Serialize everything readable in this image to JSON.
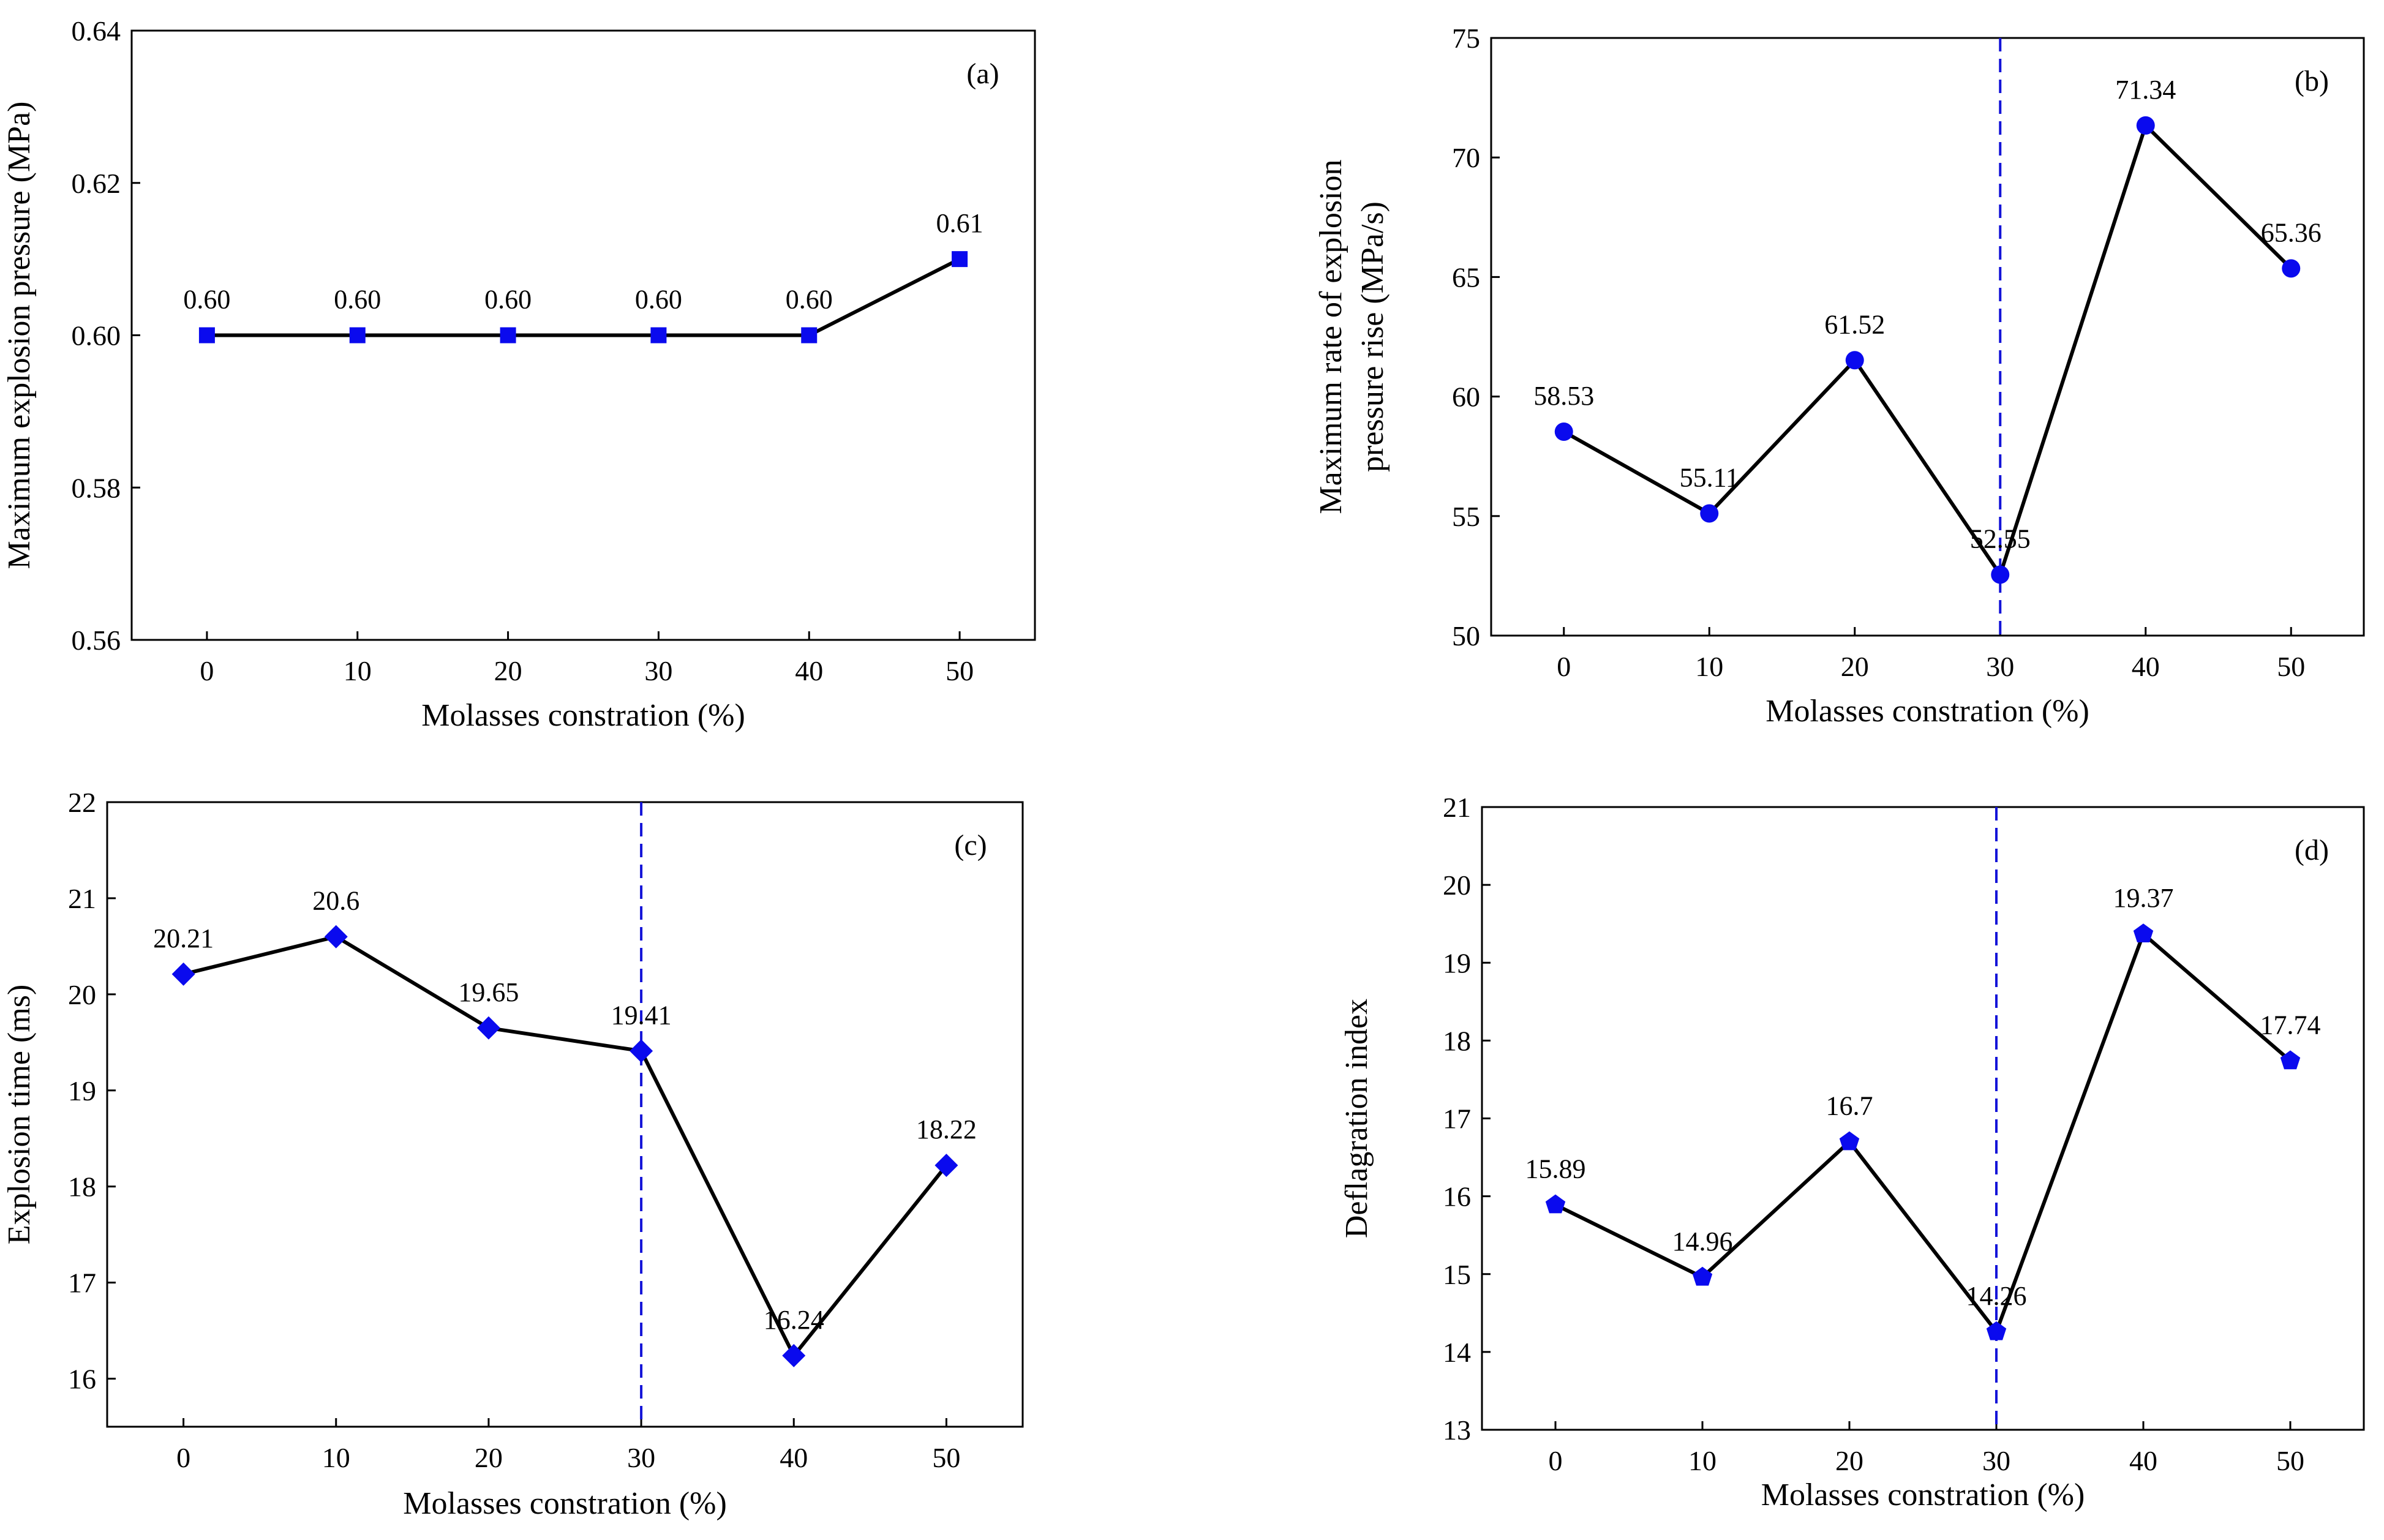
{
  "chart_data": [
    {
      "id": "a",
      "type": "line",
      "panel_label": "(a)",
      "xlabel": "Molasses constration (%)",
      "ylabel": "Maximum explosion pressure (MPa)",
      "ylabel_lines": [
        "Maximum explosion pressure (MPa)"
      ],
      "x": [
        0,
        10,
        20,
        30,
        40,
        50
      ],
      "xticks": [
        0,
        10,
        20,
        30,
        40,
        50
      ],
      "xlim": [
        -5,
        55
      ],
      "values": [
        0.6,
        0.6,
        0.6,
        0.6,
        0.6,
        0.61
      ],
      "data_labels": [
        "0.60",
        "0.60",
        "0.60",
        "0.60",
        "0.60",
        "0.61"
      ],
      "yticks": [
        "0.56",
        "0.58",
        "0.60",
        "0.62",
        "0.64"
      ],
      "ylim": [
        0.56,
        0.64
      ],
      "marker": "square",
      "marker_color": "#0a0aee",
      "line_color": "#000000",
      "dashed_line_x": null,
      "grid": false
    },
    {
      "id": "b",
      "type": "line",
      "panel_label": "(b)",
      "xlabel": "Molasses constration (%)",
      "ylabel": "Maximum rate of explosion pressure rise (MPa/s)",
      "ylabel_lines": [
        "Maximum rate of explosion",
        "pressure rise (MPa/s)"
      ],
      "x": [
        0,
        10,
        20,
        30,
        40,
        50
      ],
      "xticks": [
        0,
        10,
        20,
        30,
        40,
        50
      ],
      "xlim": [
        -5,
        55
      ],
      "values": [
        58.53,
        55.11,
        61.52,
        52.55,
        71.34,
        65.36
      ],
      "data_labels": [
        "58.53",
        "55.11",
        "61.52",
        "52.55",
        "71.34",
        "65.36"
      ],
      "yticks": [
        "50",
        "55",
        "60",
        "65",
        "70",
        "75"
      ],
      "ylim": [
        50,
        75
      ],
      "marker": "circle",
      "marker_color": "#0a0aee",
      "line_color": "#000000",
      "dashed_line_x": 30,
      "grid": false
    },
    {
      "id": "c",
      "type": "line",
      "panel_label": "(c)",
      "xlabel": "Molasses constration (%)",
      "ylabel": "Explosion time (ms)",
      "ylabel_lines": [
        "Explosion time (ms)"
      ],
      "x": [
        0,
        10,
        20,
        30,
        40,
        50
      ],
      "xticks": [
        0,
        10,
        20,
        30,
        40,
        50
      ],
      "xlim": [
        -5,
        55
      ],
      "values": [
        20.21,
        20.6,
        19.65,
        19.41,
        16.24,
        18.22
      ],
      "data_labels": [
        "20.21",
        "20.6",
        "19.65",
        "19.41",
        "16.24",
        "18.22"
      ],
      "yticks": [
        "16",
        "17",
        "18",
        "19",
        "20",
        "21",
        "22"
      ],
      "ylim": [
        15.5,
        22
      ],
      "marker": "diamond",
      "marker_color": "#0a0aee",
      "line_color": "#000000",
      "dashed_line_x": 30,
      "grid": false
    },
    {
      "id": "d",
      "type": "line",
      "panel_label": "(d)",
      "xlabel": "Molasses constration (%)",
      "ylabel": "Deflagration index",
      "ylabel_lines": [
        "Deflagration index"
      ],
      "x": [
        0,
        10,
        20,
        30,
        40,
        50
      ],
      "xticks": [
        0,
        10,
        20,
        30,
        40,
        50
      ],
      "xlim": [
        -5,
        55
      ],
      "values": [
        15.89,
        14.96,
        16.7,
        14.26,
        19.37,
        17.74
      ],
      "data_labels": [
        "15.89",
        "14.96",
        "16.7",
        "14.26",
        "19.37",
        "17.74"
      ],
      "yticks": [
        "13",
        "14",
        "15",
        "16",
        "17",
        "18",
        "19",
        "20",
        "21"
      ],
      "ylim": [
        13,
        21
      ],
      "marker": "pentagon",
      "marker_color": "#0a0aee",
      "line_color": "#000000",
      "dashed_line_x": 30,
      "grid": false
    }
  ]
}
